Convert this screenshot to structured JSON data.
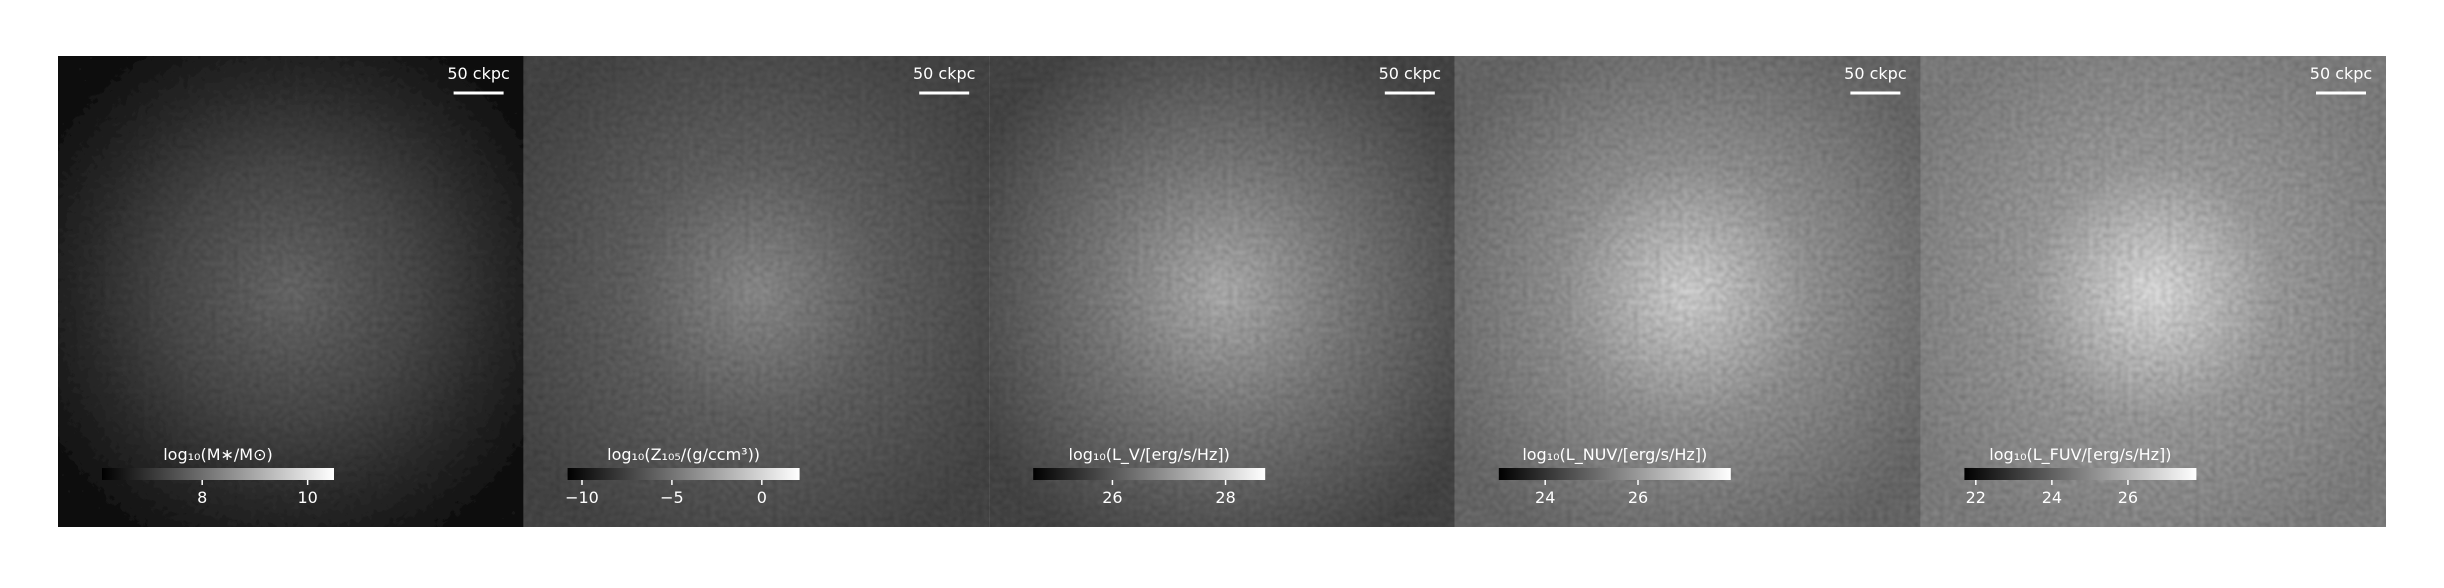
{
  "panels": [
    {
      "scale_label": "50 ckpc",
      "colorbar": {
        "label": "log₁₀(M∗/M⊙)",
        "lim": [
          6.1,
          10.5
        ],
        "ticks": [
          8,
          10
        ]
      }
    },
    {
      "scale_label": "50 ckpc",
      "colorbar": {
        "label": "log₁₀(Z₁₀₅/(g/ccm³))",
        "lim": [
          -10.8,
          2.1
        ],
        "ticks": [
          {
            "value": -10,
            "label": "−10"
          },
          {
            "value": -5,
            "label": "−5"
          },
          0
        ]
      }
    },
    {
      "scale_label": "50 ckpc",
      "colorbar": {
        "label": "log₁₀(L_V/[erg/s/Hz])",
        "lim": [
          24.6,
          28.7
        ],
        "ticks": [
          26,
          28
        ]
      }
    },
    {
      "scale_label": "50 ckpc",
      "colorbar": {
        "label": "log₁₀(L_NUV/[erg/s/Hz])",
        "lim": [
          23,
          28
        ],
        "ticks": [
          24,
          26
        ]
      }
    },
    {
      "scale_label": "50 ckpc",
      "colorbar": {
        "label": "log₁₀(L_FUV/[erg/s/Hz])",
        "lim": [
          21.7,
          27.8
        ],
        "ticks": [
          22,
          24,
          26
        ]
      }
    }
  ]
}
